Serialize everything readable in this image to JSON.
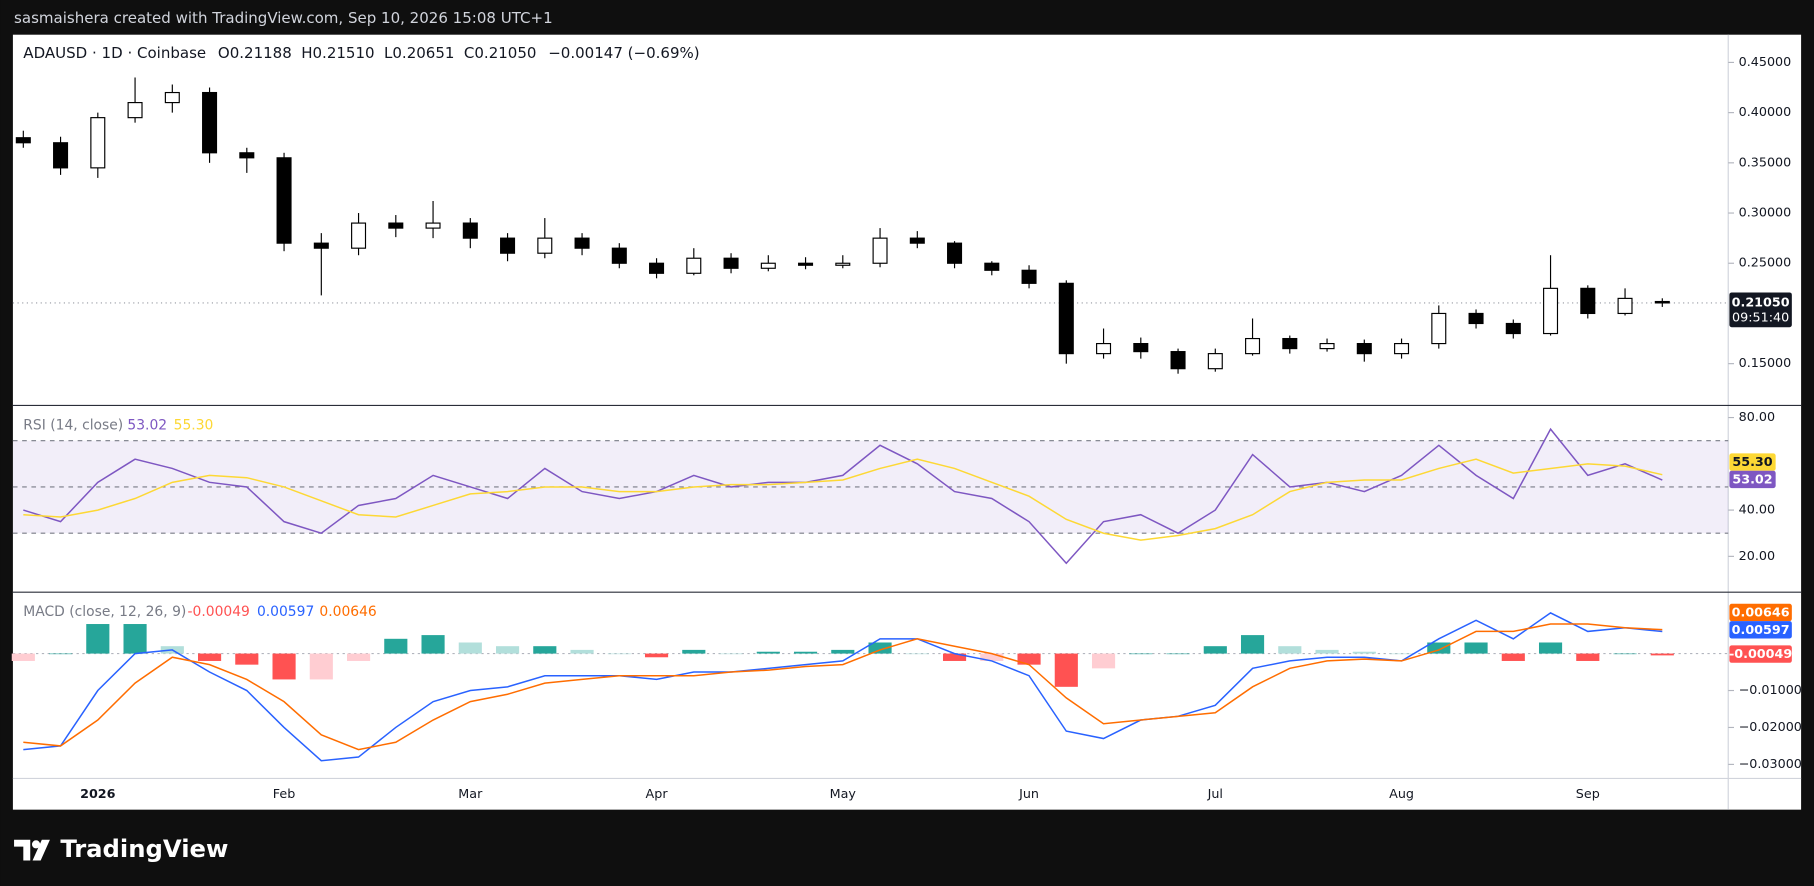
{
  "header": {
    "attribution": "sasmaishera created with TradingView.com, Sep 10, 2026 15:08 UTC+1",
    "symbol": "ADAUSD · 1D · Coinbase",
    "ohlc_letters": [
      "O",
      "H",
      "L",
      "C"
    ],
    "last_bar": {
      "open": "0.21188",
      "high": "0.21510",
      "low": "0.20651",
      "close": "0.21050",
      "change": "−0.00147 (−0.69%)"
    },
    "countdown": "09:51:40"
  },
  "footer": {
    "brand": "TradingView"
  },
  "chart_data": [
    {
      "type": "candlestick",
      "categories": [
        null,
        null,
        "2026",
        null,
        null,
        null,
        null,
        "Feb",
        null,
        null,
        null,
        null,
        "Mar",
        null,
        null,
        null,
        null,
        "Apr",
        null,
        null,
        null,
        null,
        "May",
        null,
        null,
        null,
        null,
        "Jun",
        null,
        null,
        null,
        null,
        "Jul",
        null,
        null,
        null,
        null,
        "Aug",
        null,
        null,
        null,
        null,
        "Sep",
        null,
        null
      ],
      "open": [
        0.375,
        0.37,
        0.345,
        0.395,
        0.41,
        0.42,
        0.36,
        0.355,
        0.27,
        0.265,
        0.29,
        0.285,
        0.29,
        0.275,
        0.26,
        0.275,
        0.265,
        0.25,
        0.24,
        0.255,
        0.245,
        0.25,
        0.248,
        0.25,
        0.275,
        0.27,
        0.25,
        0.243,
        0.23,
        0.16,
        0.17,
        0.162,
        0.145,
        0.16,
        0.175,
        0.165,
        0.17,
        0.16,
        0.17,
        0.2,
        0.19,
        0.18,
        0.225,
        0.2,
        0.21188
      ],
      "high": [
        0.382,
        0.376,
        0.4,
        0.435,
        0.428,
        0.425,
        0.365,
        0.36,
        0.28,
        0.3,
        0.298,
        0.312,
        0.295,
        0.28,
        0.295,
        0.28,
        0.27,
        0.255,
        0.265,
        0.26,
        0.258,
        0.256,
        0.258,
        0.285,
        0.282,
        0.272,
        0.252,
        0.248,
        0.233,
        0.185,
        0.176,
        0.165,
        0.165,
        0.195,
        0.178,
        0.175,
        0.174,
        0.175,
        0.208,
        0.204,
        0.194,
        0.258,
        0.228,
        0.225,
        0.2151
      ],
      "low": [
        0.365,
        0.338,
        0.335,
        0.39,
        0.4,
        0.35,
        0.34,
        0.262,
        0.218,
        0.258,
        0.276,
        0.275,
        0.265,
        0.252,
        0.255,
        0.258,
        0.245,
        0.235,
        0.238,
        0.24,
        0.242,
        0.244,
        0.245,
        0.246,
        0.265,
        0.245,
        0.238,
        0.225,
        0.15,
        0.155,
        0.155,
        0.14,
        0.142,
        0.158,
        0.16,
        0.162,
        0.152,
        0.155,
        0.165,
        0.185,
        0.175,
        0.178,
        0.195,
        0.198,
        0.20651
      ],
      "close": [
        0.37,
        0.345,
        0.395,
        0.41,
        0.42,
        0.36,
        0.355,
        0.27,
        0.265,
        0.29,
        0.285,
        0.29,
        0.275,
        0.26,
        0.275,
        0.265,
        0.25,
        0.24,
        0.255,
        0.245,
        0.25,
        0.248,
        0.25,
        0.275,
        0.27,
        0.25,
        0.243,
        0.23,
        0.16,
        0.17,
        0.162,
        0.145,
        0.16,
        0.175,
        0.165,
        0.17,
        0.16,
        0.17,
        0.2,
        0.19,
        0.18,
        0.225,
        0.2,
        0.215,
        0.2105
      ],
      "up_color": "#ffffff",
      "down_color": "#000000",
      "border_color": "#000000",
      "ylim": [
        0.109,
        0.473
      ],
      "yticks": [
        {
          "value": 0.15,
          "label": "0.15000"
        },
        {
          "value": 0.25,
          "label": "0.25000"
        },
        {
          "value": 0.3,
          "label": "0.30000"
        },
        {
          "value": 0.35,
          "label": "0.35000"
        },
        {
          "value": 0.4,
          "label": "0.40000"
        },
        {
          "value": 0.45,
          "label": "0.45000"
        }
      ]
    },
    {
      "type": "line",
      "title": "RSI (14, close)",
      "series": [
        {
          "name": "RSI",
          "color": "#7e57c2",
          "last_label": "53.02",
          "values": [
            40,
            35,
            52,
            62,
            58,
            52,
            50,
            35,
            30,
            42,
            45,
            55,
            50,
            45,
            58,
            48,
            45,
            48,
            55,
            50,
            52,
            52,
            55,
            68,
            60,
            48,
            45,
            35,
            17,
            35,
            38,
            30,
            40,
            64,
            50,
            52,
            48,
            55,
            68,
            55,
            45,
            75,
            55,
            60,
            53.02
          ]
        },
        {
          "name": "RSI-based MA",
          "color": "#fdd835",
          "last_label": "55.30",
          "values": [
            38,
            37,
            40,
            45,
            52,
            55,
            54,
            50,
            44,
            38,
            37,
            42,
            47,
            48,
            50,
            50,
            48,
            48,
            50,
            51,
            51,
            52,
            53,
            58,
            62,
            58,
            52,
            46,
            36,
            30,
            27,
            29,
            32,
            38,
            48,
            52,
            53,
            53,
            58,
            62,
            56,
            58,
            60,
            59,
            55.3
          ]
        }
      ],
      "bands": [
        70,
        50,
        30
      ],
      "band_color": "#7e57c2",
      "ylim": [
        5,
        85
      ],
      "yticks": [
        {
          "value": 20,
          "label": "20.00"
        },
        {
          "value": 40,
          "label": "40.00"
        },
        {
          "value": 80,
          "label": "80.00"
        }
      ]
    },
    {
      "type": "macd",
      "title": "MACD (close, 12, 26, 9)",
      "series": [
        {
          "name": "Histogram",
          "kind": "bar",
          "color": "#ff5252",
          "colors": {
            "up_grow": "#26a69a",
            "up_fall": "#b2dfdb",
            "down_grow": "#ff5252",
            "down_fall": "#ffcdd2"
          },
          "values": [
            -0.002,
            0,
            0.008,
            0.008,
            0.002,
            -0.002,
            -0.003,
            -0.007,
            -0.007,
            -0.002,
            0.004,
            0.005,
            0.003,
            0.002,
            0.002,
            0.001,
            0,
            -0.001,
            0.001,
            0,
            0.0005,
            0.0005,
            0.001,
            0.003,
            0,
            -0.002,
            -0.002,
            -0.003,
            -0.009,
            -0.004,
            0,
            0,
            0.002,
            0.005,
            0.002,
            0.001,
            0.0005,
            0,
            0.003,
            0.003,
            -0.002,
            0.003,
            -0.002,
            0,
            -0.00049
          ]
        },
        {
          "name": "MACD",
          "kind": "line",
          "color": "#2962ff",
          "values": [
            -0.026,
            -0.025,
            -0.01,
            0,
            0.001,
            -0.005,
            -0.01,
            -0.02,
            -0.029,
            -0.028,
            -0.02,
            -0.013,
            -0.01,
            -0.009,
            -0.006,
            -0.006,
            -0.006,
            -0.007,
            -0.005,
            -0.005,
            -0.004,
            -0.003,
            -0.002,
            0.004,
            0.004,
            0,
            -0.002,
            -0.006,
            -0.021,
            -0.023,
            -0.018,
            -0.017,
            -0.014,
            -0.004,
            -0.002,
            -0.001,
            -0.001,
            -0.002,
            0.004,
            0.009,
            0.004,
            0.011,
            0.006,
            0.007,
            0.00597
          ]
        },
        {
          "name": "Signal",
          "kind": "line",
          "color": "#ff6d00",
          "values": [
            -0.024,
            -0.025,
            -0.018,
            -0.008,
            -0.001,
            -0.003,
            -0.007,
            -0.013,
            -0.022,
            -0.026,
            -0.024,
            -0.018,
            -0.013,
            -0.011,
            -0.008,
            -0.007,
            -0.006,
            -0.006,
            -0.006,
            -0.005,
            -0.0045,
            -0.0035,
            -0.003,
            0.001,
            0.004,
            0.002,
            0,
            -0.003,
            -0.012,
            -0.019,
            -0.018,
            -0.017,
            -0.016,
            -0.009,
            -0.004,
            -0.002,
            -0.0015,
            -0.002,
            0.001,
            0.006,
            0.006,
            0.008,
            0.008,
            0.007,
            0.00646
          ]
        }
      ],
      "ylim": [
        -0.0338,
        0.0163
      ],
      "yticks": [
        {
          "value": -0.01,
          "label": "−0.01000"
        },
        {
          "value": -0.02,
          "label": "−0.02000"
        },
        {
          "value": -0.03,
          "label": "−0.03000"
        }
      ]
    }
  ]
}
